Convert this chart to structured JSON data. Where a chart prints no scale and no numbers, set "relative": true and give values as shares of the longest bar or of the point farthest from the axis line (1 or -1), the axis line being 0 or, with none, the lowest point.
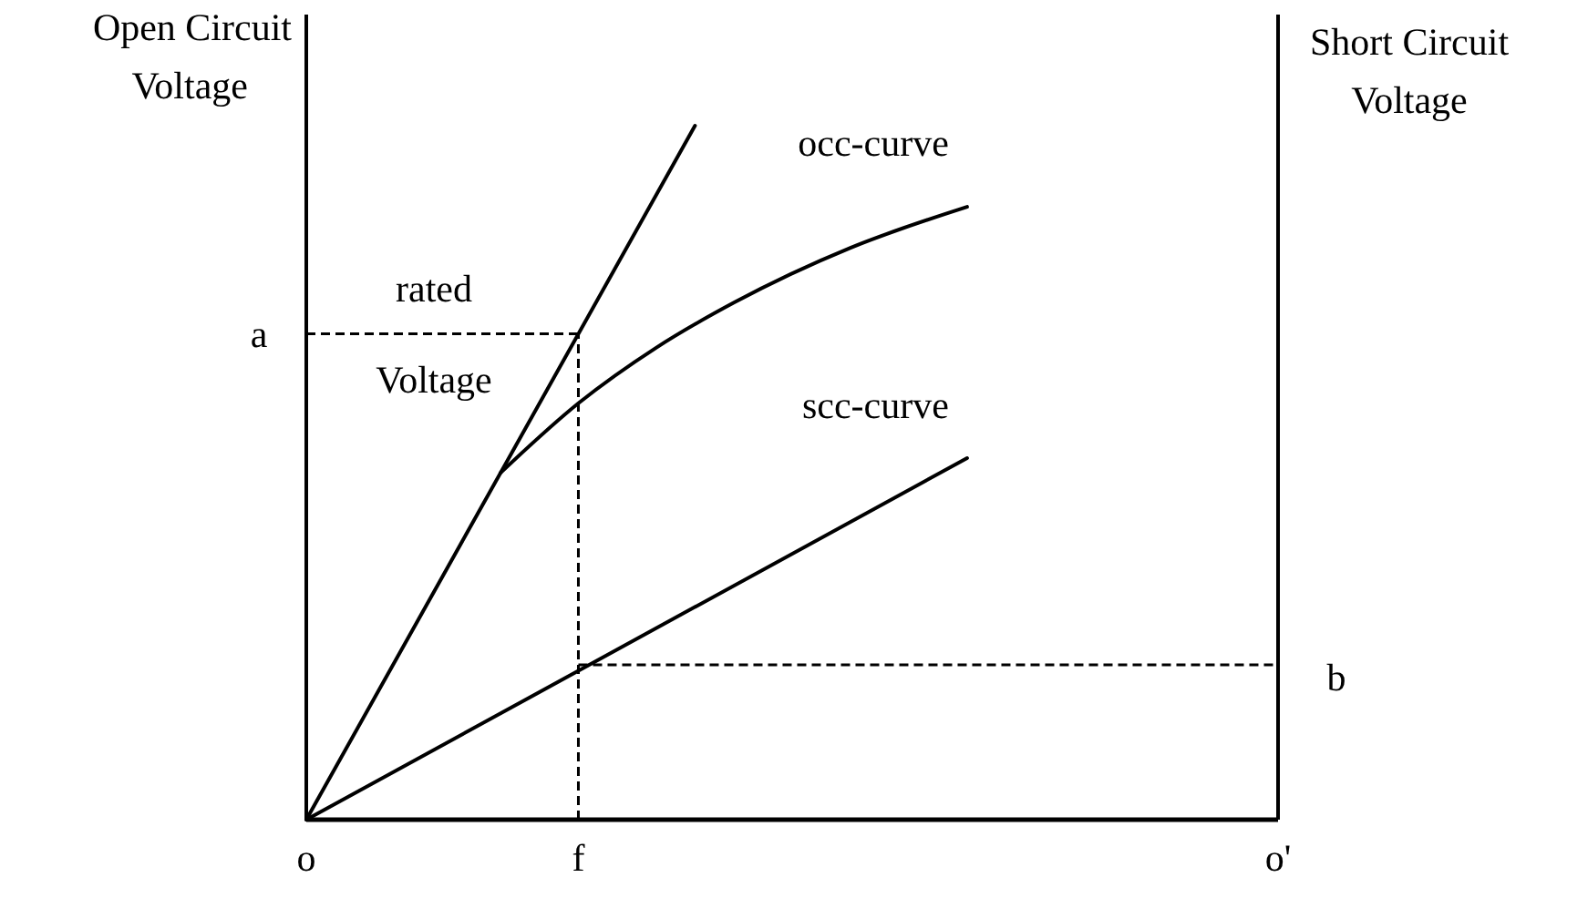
{
  "chart_data": {
    "type": "line",
    "relative": true,
    "ylabel": "Open Circuit Voltage",
    "y2label": "Short Circuit Voltage",
    "categories": [
      "o",
      null,
      null,
      null,
      null,
      null,
      null,
      "f",
      null,
      null,
      null,
      null,
      null,
      null,
      null,
      null,
      null,
      null,
      null,
      null,
      null,
      null,
      null,
      null,
      null,
      "o'"
    ],
    "series": [
      {
        "color": "#000000",
        "values": [
          0,
          null,
          null,
          null,
          null,
          null,
          null,
          null,
          null,
          null,
          1,
          null,
          null,
          null,
          null,
          null,
          null,
          null,
          null,
          null,
          null,
          null,
          null,
          null,
          null,
          null
        ]
      },
      {
        "name": "occ-curve",
        "color": "#000000",
        "values": [
          null,
          null,
          null,
          null,
          null,
          0.5,
          null,
          0.6,
          null,
          0.68,
          null,
          0.745,
          null,
          null,
          0.824,
          null,
          null,
          0.883,
          null,
          null,
          null,
          null,
          null,
          null,
          null,
          null
        ]
      },
      {
        "name": "scc-curve",
        "color": "#000000",
        "values": [
          0,
          null,
          null,
          null,
          null,
          null,
          null,
          null,
          null,
          null,
          null,
          null,
          null,
          null,
          null,
          null,
          null,
          0.521,
          null,
          null,
          null,
          null,
          null,
          null,
          null,
          null
        ]
      }
    ],
    "ref_lines": [
      {
        "axis": "x",
        "value": "f",
        "line_style": "dashed"
      },
      {
        "axis": "y",
        "value": 0.7,
        "label": "a",
        "line_style": "dashed"
      },
      {
        "axis": "y",
        "value": 0.223,
        "label": "b",
        "line_style": "dashed"
      }
    ],
    "annotations": [
      "rated Voltage"
    ],
    "marker": "none",
    "line_style": "solid"
  }
}
